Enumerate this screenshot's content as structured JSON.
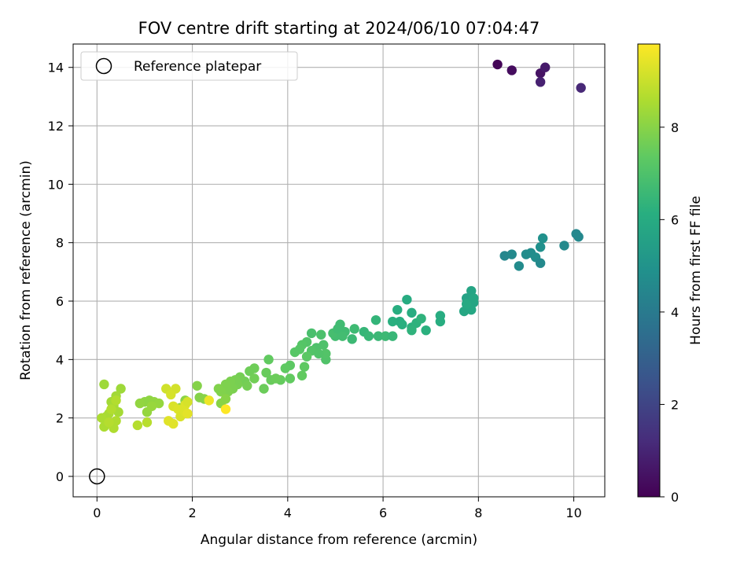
{
  "chart_data": {
    "type": "scatter",
    "title": "FOV centre drift starting at 2024/06/10 07:04:47",
    "xlabel": "Angular distance from reference (arcmin)",
    "ylabel": "Rotation from reference (arcmin)",
    "xlim": [
      -0.5,
      10.65
    ],
    "ylim": [
      -0.7,
      14.8
    ],
    "xticks": [
      0,
      2,
      4,
      6,
      8,
      10
    ],
    "yticks": [
      0,
      2,
      4,
      6,
      8,
      10,
      12,
      14
    ],
    "grid": true,
    "legend": {
      "placement": "top-left",
      "entries": [
        "Reference platepar"
      ]
    },
    "reference_point": {
      "name": "Reference platepar",
      "x": 0,
      "y": 0
    },
    "colorbar": {
      "label": "Hours from first FF file",
      "colormap": "viridis",
      "range": [
        0,
        9.8
      ],
      "ticks": [
        0,
        2,
        4,
        6,
        8
      ]
    },
    "series": [
      {
        "points": [
          {
            "x": 8.4,
            "y": 14.1,
            "c": 0.1
          },
          {
            "x": 8.7,
            "y": 13.9,
            "c": 0.3
          },
          {
            "x": 9.3,
            "y": 13.8,
            "c": 0.5
          },
          {
            "x": 9.4,
            "y": 14.0,
            "c": 0.7
          },
          {
            "x": 9.3,
            "y": 13.5,
            "c": 0.9
          },
          {
            "x": 10.15,
            "y": 13.3,
            "c": 1.1
          },
          {
            "x": 8.55,
            "y": 7.55,
            "c": 4.5
          },
          {
            "x": 8.7,
            "y": 7.6,
            "c": 4.6
          },
          {
            "x": 8.85,
            "y": 7.2,
            "c": 4.65
          },
          {
            "x": 9.0,
            "y": 7.6,
            "c": 4.7
          },
          {
            "x": 9.1,
            "y": 7.65,
            "c": 4.75
          },
          {
            "x": 9.2,
            "y": 7.5,
            "c": 4.8
          },
          {
            "x": 9.3,
            "y": 7.85,
            "c": 4.85
          },
          {
            "x": 9.35,
            "y": 8.15,
            "c": 4.9
          },
          {
            "x": 9.3,
            "y": 7.3,
            "c": 4.6
          },
          {
            "x": 9.8,
            "y": 7.9,
            "c": 4.6
          },
          {
            "x": 10.05,
            "y": 8.3,
            "c": 4.5
          },
          {
            "x": 10.1,
            "y": 8.2,
            "c": 4.55
          },
          {
            "x": 7.75,
            "y": 6.1,
            "c": 5.6
          },
          {
            "x": 7.8,
            "y": 5.9,
            "c": 5.65
          },
          {
            "x": 7.85,
            "y": 6.35,
            "c": 5.7
          },
          {
            "x": 7.9,
            "y": 5.95,
            "c": 5.75
          },
          {
            "x": 7.7,
            "y": 5.65,
            "c": 5.8
          },
          {
            "x": 7.85,
            "y": 5.7,
            "c": 5.85
          },
          {
            "x": 7.75,
            "y": 5.9,
            "c": 5.9
          },
          {
            "x": 7.9,
            "y": 6.1,
            "c": 5.8
          },
          {
            "x": 6.5,
            "y": 6.05,
            "c": 6.0
          },
          {
            "x": 6.6,
            "y": 5.6,
            "c": 6.05
          },
          {
            "x": 6.35,
            "y": 5.3,
            "c": 6.1
          },
          {
            "x": 6.4,
            "y": 5.2,
            "c": 6.15
          },
          {
            "x": 6.6,
            "y": 5.1,
            "c": 6.2
          },
          {
            "x": 6.7,
            "y": 5.25,
            "c": 6.25
          },
          {
            "x": 6.8,
            "y": 5.4,
            "c": 6.3
          },
          {
            "x": 6.2,
            "y": 5.3,
            "c": 6.15
          },
          {
            "x": 6.9,
            "y": 5.0,
            "c": 6.2
          },
          {
            "x": 7.2,
            "y": 5.3,
            "c": 6.1
          },
          {
            "x": 7.2,
            "y": 5.5,
            "c": 6.05
          },
          {
            "x": 6.6,
            "y": 5.0,
            "c": 6.3
          },
          {
            "x": 6.3,
            "y": 5.7,
            "c": 6.1
          },
          {
            "x": 5.85,
            "y": 5.35,
            "c": 6.4
          },
          {
            "x": 5.6,
            "y": 4.95,
            "c": 6.45
          },
          {
            "x": 5.7,
            "y": 4.8,
            "c": 6.5
          },
          {
            "x": 5.9,
            "y": 4.8,
            "c": 6.55
          },
          {
            "x": 6.05,
            "y": 4.8,
            "c": 6.6
          },
          {
            "x": 6.2,
            "y": 4.8,
            "c": 6.5
          },
          {
            "x": 5.35,
            "y": 4.7,
            "c": 6.6
          },
          {
            "x": 5.4,
            "y": 5.05,
            "c": 6.65
          },
          {
            "x": 5.1,
            "y": 5.2,
            "c": 6.7
          },
          {
            "x": 5.2,
            "y": 4.95,
            "c": 6.7
          },
          {
            "x": 5.0,
            "y": 4.8,
            "c": 6.75
          },
          {
            "x": 4.95,
            "y": 4.9,
            "c": 6.8
          },
          {
            "x": 5.05,
            "y": 5.05,
            "c": 6.7
          },
          {
            "x": 5.15,
            "y": 4.8,
            "c": 6.75
          },
          {
            "x": 4.5,
            "y": 4.9,
            "c": 6.9
          },
          {
            "x": 4.7,
            "y": 4.85,
            "c": 6.95
          },
          {
            "x": 4.6,
            "y": 4.4,
            "c": 7.0
          },
          {
            "x": 4.75,
            "y": 4.5,
            "c": 7.0
          },
          {
            "x": 4.8,
            "y": 4.0,
            "c": 7.05
          },
          {
            "x": 4.4,
            "y": 4.6,
            "c": 7.1
          },
          {
            "x": 4.5,
            "y": 4.3,
            "c": 7.1
          },
          {
            "x": 4.3,
            "y": 4.5,
            "c": 7.15
          },
          {
            "x": 4.25,
            "y": 4.35,
            "c": 7.2
          },
          {
            "x": 4.15,
            "y": 4.25,
            "c": 7.2
          },
          {
            "x": 4.4,
            "y": 4.1,
            "c": 7.25
          },
          {
            "x": 4.8,
            "y": 4.2,
            "c": 7.1
          },
          {
            "x": 4.65,
            "y": 4.2,
            "c": 7.05
          },
          {
            "x": 4.05,
            "y": 3.8,
            "c": 7.3
          },
          {
            "x": 3.95,
            "y": 3.7,
            "c": 7.35
          },
          {
            "x": 4.05,
            "y": 3.35,
            "c": 7.4
          },
          {
            "x": 4.35,
            "y": 3.75,
            "c": 7.35
          },
          {
            "x": 4.3,
            "y": 3.45,
            "c": 7.4
          },
          {
            "x": 3.85,
            "y": 3.3,
            "c": 7.45
          },
          {
            "x": 3.6,
            "y": 4.0,
            "c": 7.4
          },
          {
            "x": 3.55,
            "y": 3.55,
            "c": 7.5
          },
          {
            "x": 3.65,
            "y": 3.3,
            "c": 7.5
          },
          {
            "x": 3.75,
            "y": 3.35,
            "c": 7.55
          },
          {
            "x": 3.5,
            "y": 3.0,
            "c": 7.55
          },
          {
            "x": 3.3,
            "y": 3.7,
            "c": 7.6
          },
          {
            "x": 3.2,
            "y": 3.6,
            "c": 7.6
          },
          {
            "x": 3.3,
            "y": 3.35,
            "c": 7.65
          },
          {
            "x": 3.1,
            "y": 3.25,
            "c": 7.65
          },
          {
            "x": 3.15,
            "y": 3.1,
            "c": 7.7
          },
          {
            "x": 3.0,
            "y": 3.4,
            "c": 7.7
          },
          {
            "x": 2.95,
            "y": 3.15,
            "c": 7.75
          },
          {
            "x": 2.9,
            "y": 3.3,
            "c": 7.75
          },
          {
            "x": 2.8,
            "y": 3.25,
            "c": 7.8
          },
          {
            "x": 2.85,
            "y": 3.0,
            "c": 7.8
          },
          {
            "x": 2.7,
            "y": 3.15,
            "c": 7.85
          },
          {
            "x": 2.75,
            "y": 2.9,
            "c": 7.85
          },
          {
            "x": 2.6,
            "y": 2.9,
            "c": 7.9
          },
          {
            "x": 2.55,
            "y": 3.0,
            "c": 7.9
          },
          {
            "x": 2.1,
            "y": 3.1,
            "c": 7.95
          },
          {
            "x": 2.15,
            "y": 2.7,
            "c": 7.95
          },
          {
            "x": 2.25,
            "y": 2.65,
            "c": 8.0
          },
          {
            "x": 2.6,
            "y": 2.5,
            "c": 8.0
          },
          {
            "x": 2.7,
            "y": 2.65,
            "c": 8.0
          },
          {
            "x": 1.75,
            "y": 2.35,
            "c": 8.05
          },
          {
            "x": 1.85,
            "y": 2.6,
            "c": 8.05
          },
          {
            "x": 1.0,
            "y": 2.55,
            "c": 8.1
          },
          {
            "x": 1.1,
            "y": 2.6,
            "c": 8.1
          },
          {
            "x": 1.2,
            "y": 2.55,
            "c": 8.15
          },
          {
            "x": 0.9,
            "y": 2.5,
            "c": 8.15
          },
          {
            "x": 1.05,
            "y": 2.2,
            "c": 8.2
          },
          {
            "x": 1.3,
            "y": 2.5,
            "c": 8.2
          },
          {
            "x": 1.15,
            "y": 2.4,
            "c": 8.25
          },
          {
            "x": 0.15,
            "y": 3.15,
            "c": 8.35
          },
          {
            "x": 0.5,
            "y": 3.0,
            "c": 8.35
          },
          {
            "x": 0.4,
            "y": 2.75,
            "c": 8.4
          },
          {
            "x": 0.3,
            "y": 2.55,
            "c": 8.4
          },
          {
            "x": 0.35,
            "y": 2.4,
            "c": 8.45
          },
          {
            "x": 0.45,
            "y": 2.2,
            "c": 8.45
          },
          {
            "x": 0.25,
            "y": 2.15,
            "c": 8.5
          },
          {
            "x": 0.2,
            "y": 2.05,
            "c": 8.5
          },
          {
            "x": 0.1,
            "y": 2.0,
            "c": 8.55
          },
          {
            "x": 0.15,
            "y": 1.7,
            "c": 8.55
          },
          {
            "x": 0.35,
            "y": 1.65,
            "c": 8.6
          },
          {
            "x": 0.4,
            "y": 1.9,
            "c": 8.6
          },
          {
            "x": 0.3,
            "y": 2.3,
            "c": 8.65
          },
          {
            "x": 0.4,
            "y": 2.6,
            "c": 8.65
          },
          {
            "x": 0.25,
            "y": 1.85,
            "c": 8.7
          },
          {
            "x": 0.85,
            "y": 1.75,
            "c": 8.7
          },
          {
            "x": 1.05,
            "y": 1.85,
            "c": 8.75
          },
          {
            "x": 1.45,
            "y": 3.0,
            "c": 9.1
          },
          {
            "x": 1.65,
            "y": 3.0,
            "c": 9.15
          },
          {
            "x": 1.55,
            "y": 2.8,
            "c": 9.2
          },
          {
            "x": 1.6,
            "y": 2.4,
            "c": 9.25
          },
          {
            "x": 1.7,
            "y": 2.3,
            "c": 9.3
          },
          {
            "x": 1.85,
            "y": 2.45,
            "c": 9.3
          },
          {
            "x": 1.9,
            "y": 2.55,
            "c": 9.2
          },
          {
            "x": 1.75,
            "y": 2.05,
            "c": 9.25
          },
          {
            "x": 1.85,
            "y": 2.2,
            "c": 9.3
          },
          {
            "x": 1.5,
            "y": 1.9,
            "c": 9.35
          },
          {
            "x": 1.6,
            "y": 1.8,
            "c": 9.35
          },
          {
            "x": 1.9,
            "y": 2.15,
            "c": 9.4
          },
          {
            "x": 2.35,
            "y": 2.6,
            "c": 9.55
          },
          {
            "x": 2.7,
            "y": 2.3,
            "c": 9.8
          }
        ]
      }
    ]
  }
}
